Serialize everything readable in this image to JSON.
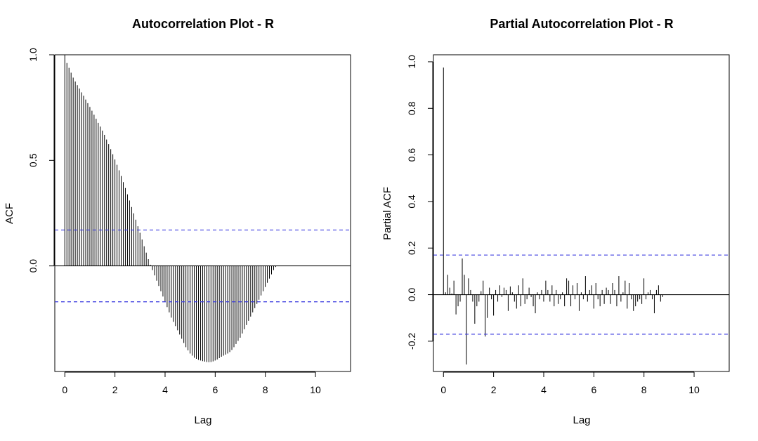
{
  "chart_data": [
    {
      "type": "bar",
      "title": "Autocorrelation Plot - R",
      "xlabel": "Lag",
      "ylabel": "ACF",
      "xlim": [
        -0.4,
        11.4
      ],
      "ylim": [
        -0.5,
        1.0
      ],
      "xticks": [
        "0",
        "2",
        "4",
        "6",
        "8",
        "10"
      ],
      "yticks": [
        "0.0",
        "0.5",
        "1.0"
      ],
      "conf_limits": [
        0.17,
        -0.17
      ],
      "zero_line": true,
      "lag_step": 0.0833,
      "values": [
        1.0,
        0.961,
        0.938,
        0.915,
        0.892,
        0.873,
        0.856,
        0.84,
        0.822,
        0.806,
        0.788,
        0.771,
        0.753,
        0.735,
        0.716,
        0.697,
        0.678,
        0.66,
        0.641,
        0.621,
        0.599,
        0.577,
        0.553,
        0.529,
        0.504,
        0.479,
        0.453,
        0.426,
        0.397,
        0.369,
        0.339,
        0.31,
        0.279,
        0.249,
        0.219,
        0.188,
        0.157,
        0.125,
        0.093,
        0.063,
        0.032,
        0.005,
        -0.02,
        -0.045,
        -0.07,
        -0.095,
        -0.12,
        -0.145,
        -0.17,
        -0.195,
        -0.22,
        -0.245,
        -0.265,
        -0.285,
        -0.305,
        -0.325,
        -0.345,
        -0.365,
        -0.385,
        -0.4,
        -0.415,
        -0.425,
        -0.435,
        -0.44,
        -0.445,
        -0.448,
        -0.451,
        -0.453,
        -0.455,
        -0.456,
        -0.455,
        -0.452,
        -0.448,
        -0.443,
        -0.437,
        -0.43,
        -0.425,
        -0.42,
        -0.415,
        -0.408,
        -0.398,
        -0.385,
        -0.37,
        -0.355,
        -0.34,
        -0.32,
        -0.3,
        -0.28,
        -0.26,
        -0.24,
        -0.22,
        -0.2,
        -0.18,
        -0.16,
        -0.14,
        -0.12,
        -0.1,
        -0.08,
        -0.06,
        -0.04,
        -0.02,
        -0.005
      ]
    },
    {
      "type": "bar",
      "title": "Partial Autocorrelation Plot - R",
      "xlabel": "Lag",
      "ylabel": "Partial ACF",
      "xlim": [
        -0.4,
        11.4
      ],
      "ylim": [
        -0.33,
        1.03
      ],
      "xticks": [
        "0",
        "2",
        "4",
        "6",
        "8",
        "10"
      ],
      "yticks": [
        "-0.2",
        "0.0",
        "0.2",
        "0.4",
        "0.6",
        "0.8",
        "1.0"
      ],
      "conf_limits": [
        0.17,
        -0.17
      ],
      "zero_line": true,
      "lag_step": 0.0833,
      "values": [
        0.975,
        0.01,
        0.085,
        0.03,
        0.005,
        0.06,
        -0.085,
        -0.05,
        -0.03,
        0.155,
        0.085,
        -0.3,
        0.07,
        0.02,
        -0.03,
        -0.125,
        -0.05,
        -0.03,
        0.015,
        0.06,
        -0.18,
        -0.1,
        0.03,
        -0.02,
        -0.09,
        0.02,
        -0.03,
        0.04,
        -0.01,
        0.03,
        0.02,
        -0.07,
        0.035,
        0.01,
        -0.03,
        -0.06,
        0.04,
        -0.05,
        0.07,
        -0.04,
        -0.02,
        0.03,
        -0.01,
        -0.05,
        -0.08,
        0.01,
        -0.02,
        0.02,
        -0.03,
        0.06,
        0.02,
        -0.03,
        0.04,
        -0.05,
        0.02,
        -0.04,
        -0.02,
        0.01,
        -0.05,
        0.07,
        0.06,
        -0.05,
        0.04,
        -0.02,
        0.05,
        -0.07,
        0.01,
        -0.02,
        0.08,
        -0.03,
        0.02,
        0.04,
        -0.06,
        0.05,
        -0.02,
        -0.05,
        0.02,
        -0.04,
        0.03,
        0.02,
        -0.04,
        0.05,
        0.02,
        -0.05,
        0.08,
        -0.03,
        0.01,
        0.06,
        -0.06,
        0.05,
        -0.02,
        -0.07,
        -0.05,
        -0.03,
        -0.02,
        -0.04,
        0.07,
        -0.02,
        0.01,
        0.02,
        -0.02,
        -0.08,
        0.02,
        0.04,
        -0.03,
        -0.01
      ]
    }
  ]
}
